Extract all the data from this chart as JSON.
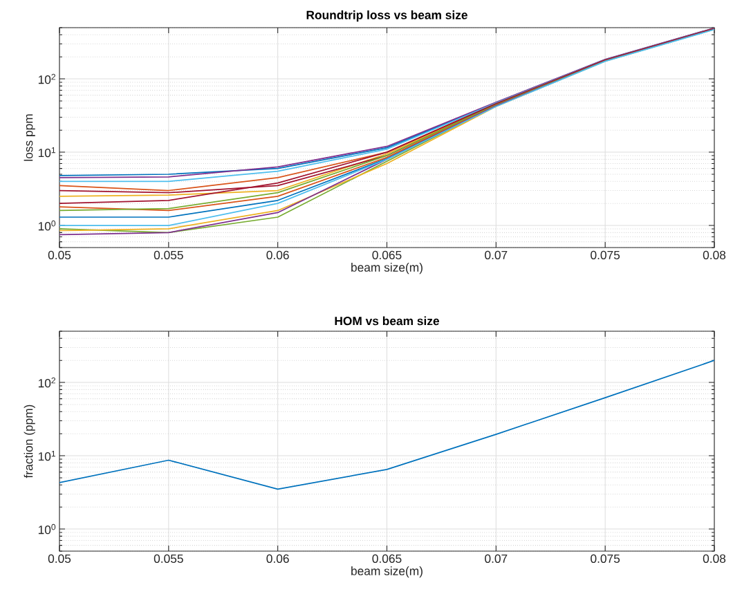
{
  "chart_data": [
    {
      "type": "line",
      "title": "Roundtrip loss vs beam size",
      "xlabel": "beam size(m)",
      "ylabel": "loss ppm",
      "log": "y",
      "grid": true,
      "xlim": [
        0.05,
        0.08
      ],
      "ylim": [
        0.5,
        500
      ],
      "xticks": [
        0.05,
        0.055,
        0.06,
        0.065,
        0.07,
        0.075,
        0.08
      ],
      "yticks": [
        {
          "value": 1,
          "label": "10$^{0}$"
        },
        {
          "value": 10,
          "label": "10$^{1}$"
        },
        {
          "value": 100,
          "label": "10$^{2}$"
        }
      ],
      "x": [
        0.05,
        0.055,
        0.06,
        0.065,
        0.07,
        0.075,
        0.08
      ],
      "series": [
        {
          "color": "#0072bd",
          "values": [
            4.8,
            5.0,
            6.0,
            11.5,
            47,
            183,
            490
          ]
        },
        {
          "color": "#d95319",
          "values": [
            3.5,
            3.0,
            4.5,
            10,
            46,
            182,
            490
          ]
        },
        {
          "color": "#edb120",
          "values": [
            2.5,
            2.6,
            3.0,
            9.5,
            45,
            180,
            485
          ]
        },
        {
          "color": "#7e2f8e",
          "values": [
            4.5,
            4.6,
            6.3,
            12,
            48,
            185,
            495
          ]
        },
        {
          "color": "#77ac30",
          "values": [
            0.9,
            0.8,
            1.3,
            7.5,
            43,
            176,
            480
          ]
        },
        {
          "color": "#a2142f",
          "values": [
            3.0,
            2.8,
            3.5,
            9,
            45,
            181,
            488
          ]
        },
        {
          "color": "#0072bd",
          "values": [
            1.3,
            1.3,
            2.2,
            8.2,
            44,
            178,
            482
          ]
        },
        {
          "color": "#d95319",
          "values": [
            1.8,
            1.6,
            2.5,
            8.5,
            44,
            179,
            484
          ]
        },
        {
          "color": "#edb120",
          "values": [
            0.85,
            0.9,
            1.6,
            7,
            42,
            175,
            476
          ]
        },
        {
          "color": "#7e2f8e",
          "values": [
            0.75,
            0.8,
            1.5,
            8,
            43,
            177,
            480
          ]
        },
        {
          "color": "#77ac30",
          "values": [
            1.6,
            1.7,
            2.8,
            9,
            45,
            180,
            486
          ]
        },
        {
          "color": "#4dbeee",
          "values": [
            4.0,
            4.0,
            5.5,
            11,
            47,
            183,
            490
          ]
        },
        {
          "color": "#a2142f",
          "values": [
            2.0,
            2.2,
            3.8,
            10,
            46,
            182,
            489
          ]
        },
        {
          "color": "#4dbeee",
          "values": [
            1.0,
            1.0,
            2.0,
            8,
            42,
            174,
            472
          ]
        }
      ]
    },
    {
      "type": "line",
      "title": "HOM vs beam size",
      "xlabel": "beam size(m)",
      "ylabel": "fraction (ppm)",
      "log": "y",
      "grid": true,
      "xlim": [
        0.05,
        0.08
      ],
      "ylim": [
        0.5,
        500
      ],
      "xticks": [
        0.05,
        0.055,
        0.06,
        0.065,
        0.07,
        0.075,
        0.08
      ],
      "yticks": [
        {
          "value": 1,
          "label": "10$^{0}$"
        },
        {
          "value": 10,
          "label": "10$^{1}$"
        },
        {
          "value": 100,
          "label": "10$^{2}$"
        }
      ],
      "x": [
        0.05,
        0.055,
        0.06,
        0.065,
        0.07,
        0.075,
        0.08
      ],
      "series": [
        {
          "color": "#0072bd",
          "values": [
            4.3,
            8.7,
            3.5,
            6.5,
            19.6,
            62,
            200
          ]
        }
      ]
    }
  ]
}
